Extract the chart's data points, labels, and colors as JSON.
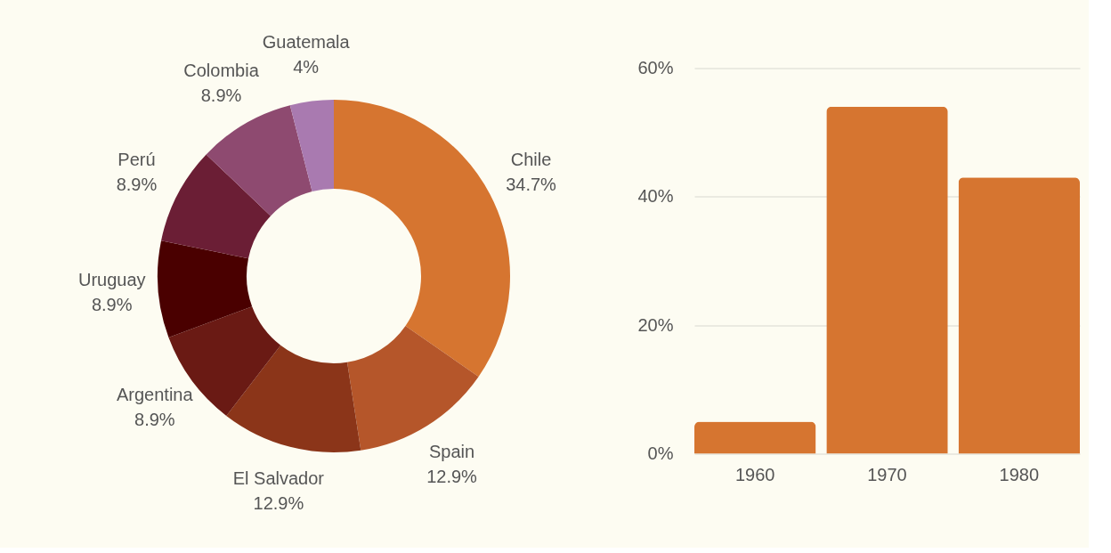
{
  "chart_data": [
    {
      "type": "donut",
      "categories": [
        "Chile",
        "Spain",
        "El Salvador",
        "Argentina",
        "Uruguay",
        "Perú",
        "Colombia",
        "Guatemala"
      ],
      "values": [
        34.7,
        12.9,
        12.9,
        8.9,
        8.9,
        8.9,
        8.9,
        4
      ],
      "value_labels": [
        "34.7%",
        "12.9%",
        "12.9%",
        "8.9%",
        "8.9%",
        "8.9%",
        "8.9%",
        "4%"
      ],
      "colors": [
        "#d67530",
        "#b5562a",
        "#8b3519",
        "#6a1a14",
        "#4a0000",
        "#6b1e35",
        "#8e4a70",
        "#a97ab0"
      ]
    },
    {
      "type": "bar",
      "categories": [
        "1960",
        "1970",
        "1980"
      ],
      "values": [
        5,
        54,
        43
      ],
      "color": "#d67530",
      "ylim": [
        0,
        60
      ],
      "yticks": [
        {
          "value": 0,
          "label": "0%"
        },
        {
          "value": 20,
          "label": "20%"
        },
        {
          "value": 40,
          "label": "40%"
        },
        {
          "value": 60,
          "label": "60%"
        }
      ],
      "grid": "y"
    }
  ]
}
